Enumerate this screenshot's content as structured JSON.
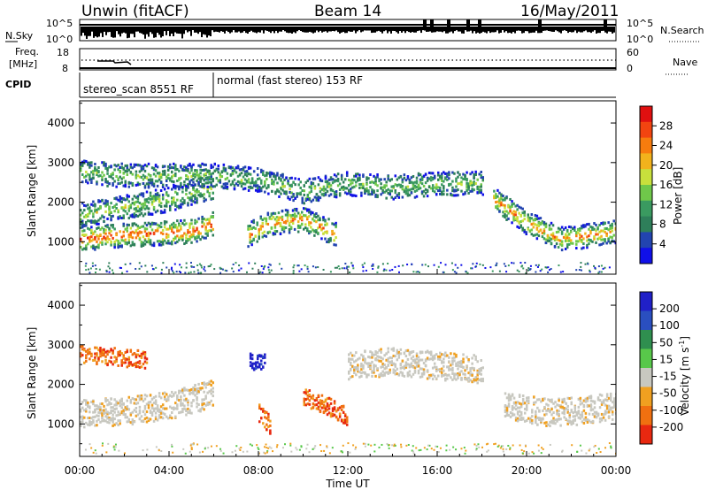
{
  "header": {
    "station": "Unwin (fitACF)",
    "beam": "Beam 14",
    "date": "16/May/2011"
  },
  "nsky_panel": {
    "left_label": "N.Sky",
    "right_label": "N.Search",
    "left_ticks": [
      "10^5",
      "10^0"
    ],
    "right_ticks": [
      "10^5",
      "10^0"
    ]
  },
  "freq_panel": {
    "left_label_line1": "Freq.",
    "left_label_line2": "[MHz]",
    "right_label": "Nave",
    "left_ticks": [
      "18",
      "8"
    ],
    "right_ticks": [
      "60",
      "0"
    ]
  },
  "cpid_panel": {
    "label": "CPID",
    "segments": [
      "stereo_scan 8551 RF",
      "normal (fast stereo) 153 RF"
    ]
  },
  "chart_data": [
    {
      "type": "heatmap",
      "title": "",
      "ylabel": "Slant Range [km]",
      "xlabel": "",
      "ylim": [
        180,
        4560
      ],
      "yticks": [
        "1000",
        "2000",
        "3000",
        "4000"
      ],
      "colorbar_label": "Power [dB]",
      "colorbar_ticks": [
        "28",
        "24",
        "20",
        "16",
        "12",
        "8",
        "4"
      ],
      "colorbar_colors": [
        "#1010e8",
        "#2244b0",
        "#2e7f5a",
        "#3a9a60",
        "#6fc84a",
        "#c8e03c",
        "#f2b21c",
        "#f77c0e",
        "#f24410",
        "#e01010"
      ],
      "echo_bands": [
        {
          "x": [
            0,
            2,
            4,
            5,
            6
          ],
          "range_km": [
            1100,
            1200,
            1250,
            1300,
            1500
          ],
          "level": 0.9
        },
        {
          "x": [
            0,
            2,
            4,
            6
          ],
          "range_km": [
            1700,
            1900,
            2100,
            2400
          ],
          "level": 0.5
        },
        {
          "x": [
            0,
            2,
            4,
            6,
            8,
            10,
            12,
            14,
            16,
            18
          ],
          "range_km": [
            2800,
            2700,
            2700,
            2700,
            2600,
            2300,
            2500,
            2400,
            2500,
            2500
          ],
          "level": 0.45
        },
        {
          "x": [
            7.5,
            8.5,
            10,
            11.5
          ],
          "range_km": [
            1200,
            1500,
            1600,
            1200
          ],
          "level": 0.8
        },
        {
          "x": [
            18.5,
            20,
            21.5,
            23,
            24
          ],
          "range_km": [
            2100,
            1500,
            1100,
            1200,
            1300
          ],
          "level": 0.75
        }
      ]
    },
    {
      "type": "heatmap",
      "title": "",
      "ylabel": "Slant Range [km]",
      "xlabel": "Time UT",
      "ylim": [
        180,
        4560
      ],
      "yticks": [
        "1000",
        "2000",
        "3000",
        "4000"
      ],
      "xticks": [
        "00:00",
        "04:00",
        "08:00",
        "12:00",
        "16:00",
        "20:00",
        "00:00"
      ],
      "x": [
        0,
        4,
        8,
        12,
        16,
        20,
        24
      ],
      "colorbar_label": "Velocity [m s^-1]",
      "colorbar_ticks": [
        "200",
        "100",
        "50",
        "15",
        "-15",
        "-50",
        "-100",
        "-200"
      ],
      "colorbar_colors": [
        "#2020c8",
        "#2a4fc0",
        "#2f8f4f",
        "#58c84a",
        "#c8c8c0",
        "#f0a020",
        "#f07010",
        "#e82810"
      ],
      "echo_bands": [
        {
          "x": [
            0,
            2,
            4,
            6
          ],
          "range_km": [
            1300,
            1350,
            1500,
            1800
          ],
          "level": "grey"
        },
        {
          "x": [
            0,
            1,
            2,
            3
          ],
          "range_km": [
            2800,
            2750,
            2700,
            2650
          ],
          "level": "red-orange"
        },
        {
          "x": [
            7.6,
            8.3
          ],
          "range_km": [
            2600,
            2600
          ],
          "level": "blue"
        },
        {
          "x": [
            8,
            8.5
          ],
          "range_km": [
            1300,
            1000
          ],
          "level": "red-orange"
        },
        {
          "x": [
            10,
            11,
            12
          ],
          "range_km": [
            1700,
            1500,
            1200
          ],
          "level": "red-orange"
        },
        {
          "x": [
            12,
            14,
            16,
            18
          ],
          "range_km": [
            2500,
            2600,
            2500,
            2400
          ],
          "level": "grey"
        },
        {
          "x": [
            19,
            21,
            23,
            24
          ],
          "range_km": [
            1500,
            1300,
            1400,
            1500
          ],
          "level": "grey"
        }
      ]
    }
  ]
}
